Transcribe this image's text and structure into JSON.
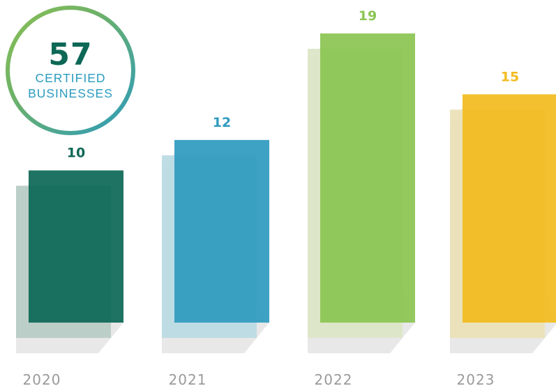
{
  "badge": {
    "number": "57",
    "line1": "CERTIFIED",
    "line2": "BUSINESSES"
  },
  "chart_data": {
    "type": "bar",
    "categories": [
      "2020",
      "2021",
      "2022",
      "2023"
    ],
    "values": [
      10,
      12,
      19,
      15
    ],
    "data_labels": [
      "10",
      "12",
      "19",
      "15"
    ],
    "colors": [
      "#0d6856",
      "#2f9bbf",
      "#8bc553",
      "#f2bb1f"
    ],
    "shadow_colors": [
      "#b9ccc6",
      "#bcdbe4",
      "#dde6c8",
      "#ebe2b8"
    ],
    "title": "",
    "xlabel": "",
    "ylabel": "",
    "ylim": [
      0,
      19
    ],
    "grid": false,
    "legend": "none"
  }
}
